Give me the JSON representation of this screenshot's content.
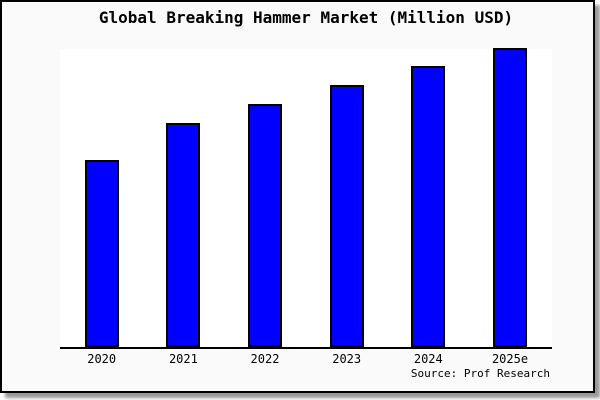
{
  "chart_data": {
    "type": "bar",
    "title": "Global Breaking Hammer Market (Million USD)",
    "categories": [
      "2020",
      "2021",
      "2022",
      "2023",
      "2024",
      "2025e"
    ],
    "values": [
      62.5,
      74.9,
      81.3,
      87.8,
      94.0,
      100
    ],
    "values_note": "No y-axis scale is shown in the chart; values are relative bar heights normalized to 2025e = 100",
    "xlabel": "",
    "ylabel": "",
    "y_axis_labels": false,
    "gridlines": false,
    "legend": false,
    "bar_fill_color": "#0000FF",
    "bar_border_color": "#000000",
    "source": "Source: Prof Research"
  },
  "colors": {
    "frame_background": "#fafafa",
    "plot_background": "#ffffff",
    "frame_border": "#000000",
    "shadow": "#9a9a9a",
    "text": "#000000"
  }
}
